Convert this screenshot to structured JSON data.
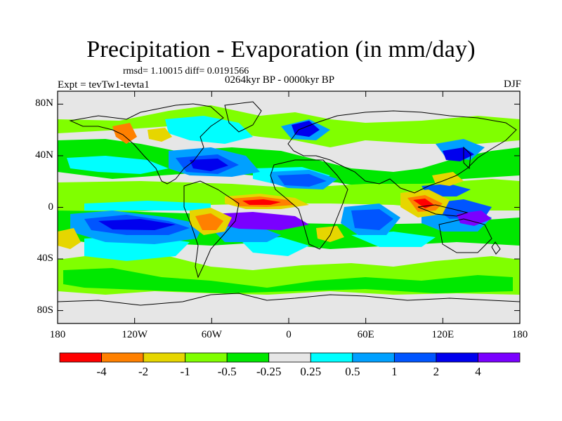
{
  "header": {
    "title": "Precipitation - Evaporation (in mm/day)",
    "stats": "rmsd= 1.10015 diff= 0.0191566",
    "period": "0264kyr BP - 0000kyr BP",
    "experiment": "Expt = tevTw1-tevta1",
    "season": "DJF"
  },
  "map": {
    "projection": "cylindrical-equidistant",
    "lon_range": [
      -180,
      180
    ],
    "lat_range": [
      -90,
      90
    ],
    "land_mask_color": "#e6e6e6",
    "coastline_color": "#000000",
    "y_ticks": [
      "80N",
      "40N",
      "0",
      "40S",
      "80S"
    ],
    "x_ticks": [
      "180",
      "120W",
      "60W",
      "0",
      "60E",
      "120E",
      "180"
    ]
  },
  "colorbar": {
    "colors": [
      "#ff0000",
      "#ff8000",
      "#e6d600",
      "#80ff00",
      "#00e800",
      "#e6e6e6",
      "#00ffff",
      "#00a0ff",
      "#0055ff",
      "#0000ee",
      "#7a00ff"
    ],
    "labels": [
      "-4",
      "-2",
      "-1",
      "-0.5",
      "-0.25",
      "0.25",
      "0.5",
      "1",
      "2",
      "4"
    ]
  }
}
